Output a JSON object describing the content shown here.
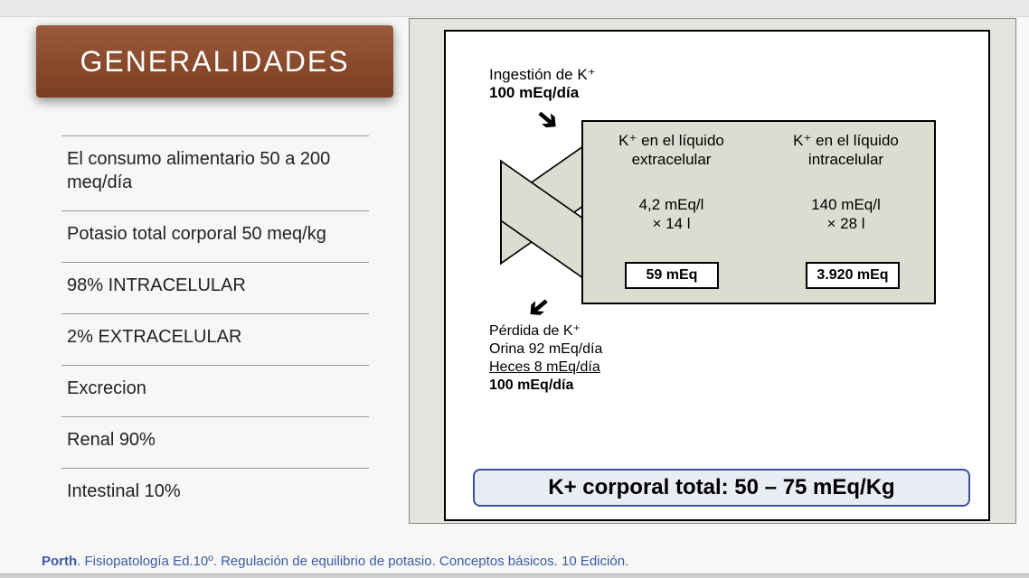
{
  "title": "GENERALIDADES",
  "bullets": [
    "El consumo alimentario 50 a 200 meq/día",
    "Potasio total corporal 50 meq/kg",
    "98% INTRACELULAR",
    "2% EXTRACELULAR",
    "Excrecion",
    "Renal 90%",
    "Intestinal 10%"
  ],
  "diagram": {
    "intake_label": "Ingestión de K⁺",
    "intake_value": "100 mEq/día",
    "ec": {
      "header_l1": "K⁺ en el líquido",
      "header_l2": "extracelular",
      "calc_l1": "4,2 mEq/l",
      "calc_l2": "× 14 l",
      "total": "59 mEq"
    },
    "ic": {
      "header_l1": "K⁺ en el líquido",
      "header_l2": "intracelular",
      "calc_l1": "140 mEq/l",
      "calc_l2": "× 28 l",
      "total": "3.920 mEq"
    },
    "loss_label": "Pérdida de K⁺",
    "loss_urine": "Orina 92 mEq/día",
    "loss_feces": "Heces 8 mEq/día",
    "loss_total": "100 mEq/día",
    "banner": "K+ corporal total: 50 – 75 mEq/Kg"
  },
  "citation": {
    "lead": "Porth",
    "rest": ". Fisiopatología Ed.10º. Regulación de equilibrio de potasio. Conceptos básicos. 10 Edición."
  },
  "style": {
    "title_bg_from": "#9a5a3c",
    "title_bg_to": "#7a3e22",
    "title_color": "#ffffff",
    "title_fontsize": 32,
    "bullet_fontsize": 20,
    "bullet_color": "#222222",
    "bullet_border": "#999999",
    "panel_bg": "#e5e3de",
    "diagram_bg": "#ffffff",
    "box_fill": "#daded0",
    "box_border": "#000000",
    "banner_bg": "#e9ecf3",
    "banner_border": "#3b4fa0",
    "banner_fontsize": 24,
    "cite_color": "#3b5aa6",
    "cite_fontsize": 15
  }
}
